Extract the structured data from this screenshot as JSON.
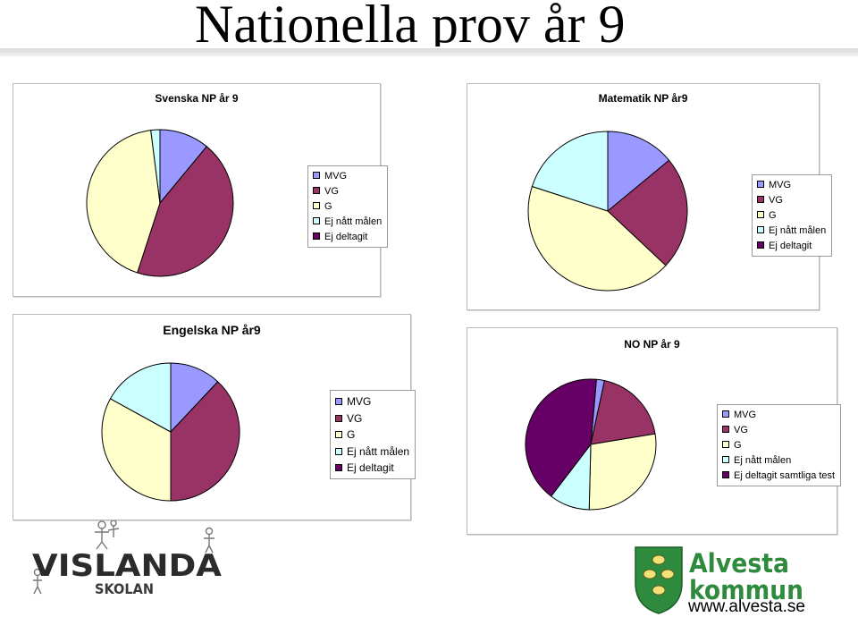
{
  "page": {
    "title": "Nationella prov år 9",
    "url": "www.alvesta.se"
  },
  "colors": {
    "MVG": "#9999ff",
    "VG": "#993366",
    "G": "#ffffcc",
    "Ej_natt": "#ccffff",
    "Ej_deltagit": "#660066",
    "outline": "#000000"
  },
  "logos": {
    "vislanda": {
      "text_top": "VISLANDA",
      "text_bottom": "SKOLAN",
      "icon": "vislanda-school-logo-icon"
    },
    "alvesta": {
      "text_top": "Alvesta",
      "text_bottom": "kommun",
      "icon": "alvesta-coat-of-arms-icon"
    }
  },
  "chart_data": [
    {
      "type": "pie",
      "title": "Svenska NP år 9",
      "legend": [
        "MVG",
        "VG",
        "G",
        "Ej nått målen",
        "Ej deltagit"
      ],
      "legend_placement": "right",
      "values": [
        11,
        44,
        43,
        2,
        0
      ]
    },
    {
      "type": "pie",
      "title": "Matematik NP år9",
      "legend": [
        "MVG",
        "VG",
        "G",
        "Ej nått målen",
        "Ej deltagit"
      ],
      "legend_placement": "right",
      "values": [
        14,
        23,
        43,
        20,
        0
      ]
    },
    {
      "type": "pie",
      "title": "Engelska NP år9",
      "legend": [
        "MVG",
        "VG",
        "G",
        "Ej nått målen",
        "Ej deltagit"
      ],
      "legend_placement": "right",
      "values": [
        12,
        38,
        33,
        17,
        0
      ]
    },
    {
      "type": "pie",
      "title": "NO NP år 9",
      "legend": [
        "MVG",
        "VG",
        "G",
        "Ej nått målen",
        "Ej deltagit  samtliga test"
      ],
      "legend_placement": "right",
      "values": [
        2,
        19,
        28,
        10,
        41
      ]
    }
  ]
}
